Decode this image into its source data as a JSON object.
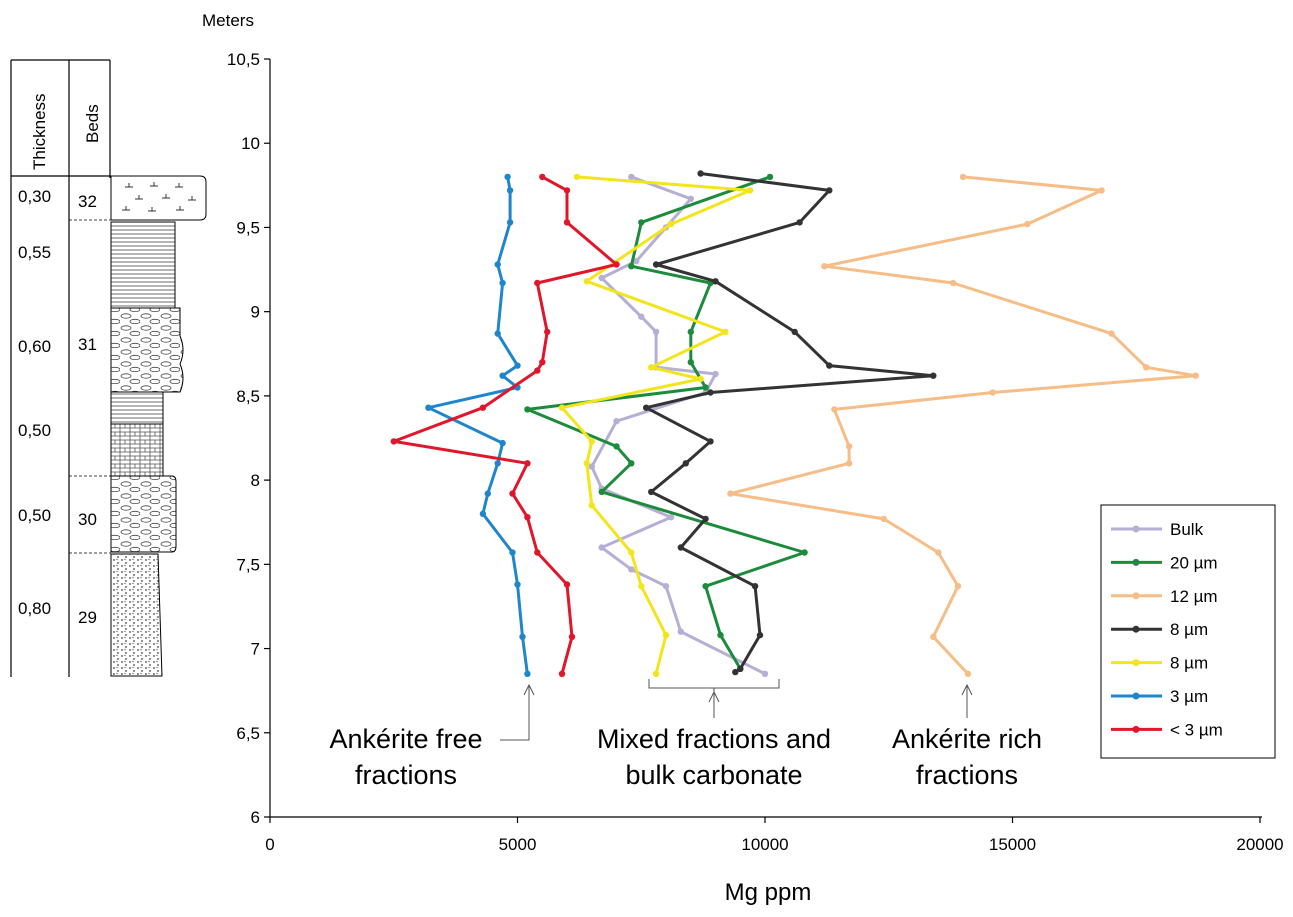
{
  "column": {
    "headers": {
      "thickness": "Thickness",
      "beds": "Beds"
    },
    "thickness_values": [
      "0,30",
      "0,55",
      "0,60",
      "0,50",
      "0,50",
      "0,80"
    ],
    "bed_numbers": [
      "32",
      "31",
      "30",
      "29"
    ]
  },
  "annotations": {
    "free": [
      "Ankérite free",
      "fractions"
    ],
    "mixed": [
      "Mixed fractions and",
      "bulk carbonate"
    ],
    "rich": [
      "Ankérite rich",
      "fractions"
    ]
  },
  "colors": {
    "bulk": "#b7aed6",
    "um20": "#1c8c3c",
    "um12": "#f7bd86",
    "um8a": "#333333",
    "um8b": "#f2e51b",
    "um3": "#1f86cc",
    "lt3": "#e0162b"
  },
  "chart_data": {
    "type": "line",
    "orientation": "vertical-depth",
    "xlabel": "Mg ppm",
    "ylabel": "Meters",
    "xlim": [
      0,
      20000
    ],
    "ylim": [
      6,
      10.5
    ],
    "xticks": [
      0,
      5000,
      10000,
      15000,
      20000
    ],
    "yticks": [
      "6",
      "6,5",
      "7",
      "7,5",
      "8",
      "8,5",
      "9",
      "9,5",
      "10",
      "10,5"
    ],
    "legend_position": "right",
    "series": [
      {
        "name": "Bulk",
        "color": "#b7aed6",
        "points": [
          [
            7300,
            9.8
          ],
          [
            8500,
            9.67
          ],
          [
            8000,
            9.5
          ],
          [
            7400,
            9.3
          ],
          [
            6700,
            9.2
          ],
          [
            7500,
            8.97
          ],
          [
            7800,
            8.88
          ],
          [
            7800,
            8.67
          ],
          [
            9000,
            8.63
          ],
          [
            8800,
            8.52
          ],
          [
            7000,
            8.35
          ],
          [
            6500,
            8.08
          ],
          [
            6700,
            7.95
          ],
          [
            8100,
            7.78
          ],
          [
            6700,
            7.6
          ],
          [
            7300,
            7.47
          ],
          [
            8000,
            7.37
          ],
          [
            8300,
            7.1
          ],
          [
            10000,
            6.85
          ]
        ]
      },
      {
        "name": "20 µm",
        "color": "#1c8c3c",
        "points": [
          [
            10100,
            9.8
          ],
          [
            7500,
            9.53
          ],
          [
            7300,
            9.27
          ],
          [
            8900,
            9.17
          ],
          [
            8500,
            8.88
          ],
          [
            8500,
            8.7
          ],
          [
            8800,
            8.55
          ],
          [
            5200,
            8.42
          ],
          [
            7000,
            8.2
          ],
          [
            7300,
            8.1
          ],
          [
            6700,
            7.93
          ],
          [
            10800,
            7.57
          ],
          [
            8800,
            7.37
          ],
          [
            9100,
            7.08
          ],
          [
            9500,
            6.88
          ]
        ]
      },
      {
        "name": "12 µm",
        "color": "#f7bd86",
        "points": [
          [
            14000,
            9.8
          ],
          [
            16800,
            9.72
          ],
          [
            15300,
            9.52
          ],
          [
            11200,
            9.27
          ],
          [
            13800,
            9.17
          ],
          [
            17000,
            8.87
          ],
          [
            17700,
            8.67
          ],
          [
            18700,
            8.62
          ],
          [
            14600,
            8.52
          ],
          [
            11400,
            8.42
          ],
          [
            11700,
            8.2
          ],
          [
            11700,
            8.1
          ],
          [
            9300,
            7.92
          ],
          [
            12400,
            7.77
          ],
          [
            13500,
            7.57
          ],
          [
            13900,
            7.37
          ],
          [
            13400,
            7.07
          ],
          [
            14100,
            6.85
          ]
        ]
      },
      {
        "name": "8 µm",
        "color": "#333333",
        "points": [
          [
            8700,
            9.82
          ],
          [
            11300,
            9.72
          ],
          [
            10700,
            9.53
          ],
          [
            7800,
            9.28
          ],
          [
            9000,
            9.18
          ],
          [
            10600,
            8.88
          ],
          [
            11300,
            8.68
          ],
          [
            13400,
            8.62
          ],
          [
            8900,
            8.52
          ],
          [
            7600,
            8.43
          ],
          [
            8900,
            8.23
          ],
          [
            8400,
            8.1
          ],
          [
            7700,
            7.93
          ],
          [
            8800,
            7.77
          ],
          [
            8300,
            7.6
          ],
          [
            9800,
            7.37
          ],
          [
            9900,
            7.08
          ],
          [
            9500,
            6.88
          ],
          [
            9400,
            6.86
          ]
        ]
      },
      {
        "name": "8 µm",
        "color": "#f2e51b",
        "points": [
          [
            6200,
            9.8
          ],
          [
            9700,
            9.72
          ],
          [
            8100,
            9.52
          ],
          [
            6400,
            9.18
          ],
          [
            9200,
            8.88
          ],
          [
            7700,
            8.67
          ],
          [
            8700,
            8.6
          ],
          [
            5900,
            8.43
          ],
          [
            6500,
            8.23
          ],
          [
            6400,
            8.1
          ],
          [
            6500,
            7.85
          ],
          [
            7300,
            7.57
          ],
          [
            7500,
            7.37
          ],
          [
            8000,
            7.08
          ],
          [
            7800,
            6.85
          ]
        ]
      },
      {
        "name": "3 µm",
        "color": "#1f86cc",
        "points": [
          [
            4800,
            9.8
          ],
          [
            4850,
            9.72
          ],
          [
            4850,
            9.53
          ],
          [
            4600,
            9.28
          ],
          [
            4700,
            9.17
          ],
          [
            4600,
            8.87
          ],
          [
            5000,
            8.68
          ],
          [
            4700,
            8.62
          ],
          [
            5000,
            8.55
          ],
          [
            3200,
            8.43
          ],
          [
            4700,
            8.22
          ],
          [
            4600,
            8.1
          ],
          [
            4400,
            7.92
          ],
          [
            4300,
            7.8
          ],
          [
            4900,
            7.57
          ],
          [
            5000,
            7.38
          ],
          [
            5100,
            7.07
          ],
          [
            5200,
            6.85
          ]
        ]
      },
      {
        "name": "< 3 µm",
        "color": "#e0162b",
        "points": [
          [
            5500,
            9.8
          ],
          [
            6000,
            9.72
          ],
          [
            6000,
            9.53
          ],
          [
            7000,
            9.28
          ],
          [
            5400,
            9.17
          ],
          [
            5600,
            8.88
          ],
          [
            5500,
            8.7
          ],
          [
            5400,
            8.65
          ],
          [
            4300,
            8.43
          ],
          [
            2500,
            8.23
          ],
          [
            5200,
            8.1
          ],
          [
            4900,
            7.92
          ],
          [
            5200,
            7.78
          ],
          [
            5400,
            7.57
          ],
          [
            6000,
            7.38
          ],
          [
            6100,
            7.07
          ],
          [
            5900,
            6.85
          ]
        ]
      }
    ]
  }
}
